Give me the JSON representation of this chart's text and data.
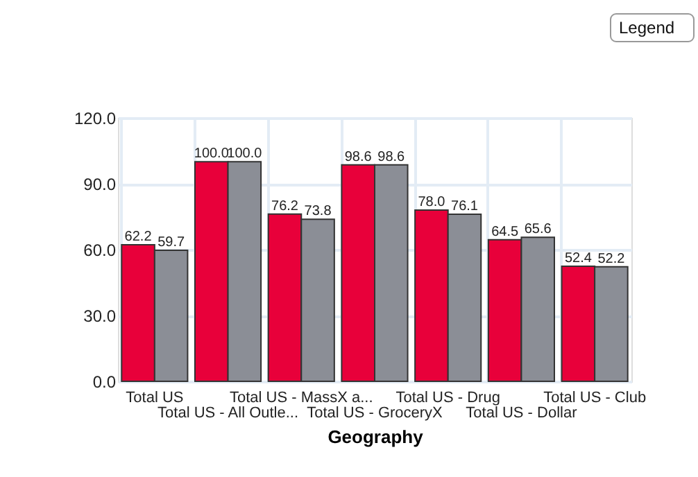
{
  "chart_data": {
    "type": "bar",
    "xlabel": "Geography",
    "categories": [
      "Total US",
      "Total US - All Outle...",
      "Total US - MassX a...",
      "Total US - GroceryX",
      "Total US - Drug",
      "Total US - Dollar",
      "Total US - Club"
    ],
    "series": [
      {
        "color": "#e8003a",
        "values": [
          62.2,
          100.0,
          76.2,
          98.6,
          78.0,
          64.5,
          52.4
        ],
        "value_labels": [
          "62.2",
          "100.0",
          "76.2",
          "98.6",
          "78.0",
          "64.5",
          "52.4"
        ]
      },
      {
        "color": "#8b8e96",
        "values": [
          59.7,
          100.0,
          73.8,
          98.6,
          76.1,
          65.6,
          52.2
        ],
        "value_labels": [
          "59.7",
          "100.0",
          "73.8",
          "98.6",
          "76.1",
          "65.6",
          "52.2"
        ]
      }
    ],
    "ylim": [
      0,
      120
    ],
    "yticks": [
      {
        "value": 0,
        "label": "0.0"
      },
      {
        "value": 30,
        "label": "30.0"
      },
      {
        "value": 60,
        "label": "60.0"
      },
      {
        "value": 90,
        "label": "90.0"
      },
      {
        "value": 120,
        "label": "120.0"
      }
    ],
    "grid": true,
    "annotations": [
      "Legend"
    ]
  }
}
